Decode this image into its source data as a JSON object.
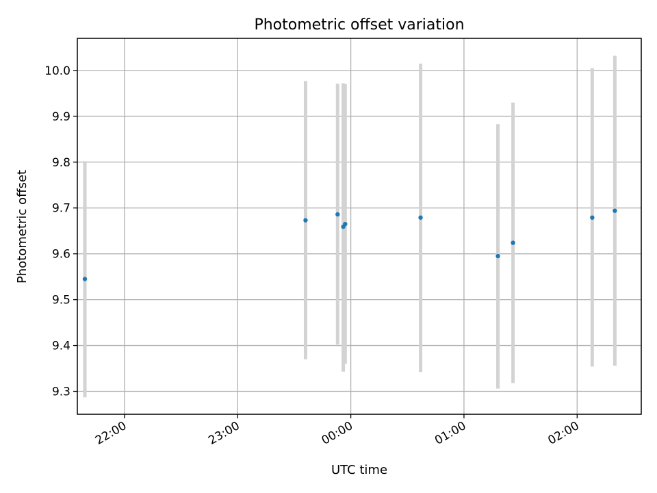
{
  "chart_data": {
    "type": "scatter",
    "title": "Photometric offset variation",
    "xlabel": "UTC time",
    "ylabel": "Photometric offset",
    "x_axis": {
      "kind": "time",
      "ticks": [
        "22:00",
        "23:00",
        "00:00",
        "01:00",
        "02:00"
      ],
      "range": [
        "21:35",
        "02:34"
      ]
    },
    "y_axis": {
      "ticks": [
        "9.3",
        "9.4",
        "9.5",
        "9.6",
        "9.7",
        "9.8",
        "9.9",
        "10.0"
      ],
      "range": [
        9.25,
        10.07
      ]
    },
    "grid": true,
    "series": [
      {
        "color": "#1f77b4",
        "error_bar_color": "#d3d3d3",
        "points": [
          {
            "t": "21:39",
            "y": 9.545,
            "ylow": 9.287,
            "yhigh": 9.802
          },
          {
            "t": "23:36",
            "y": 9.673,
            "ylow": 9.37,
            "yhigh": 9.977
          },
          {
            "t": "23:53",
            "y": 9.686,
            "ylow": 9.402,
            "yhigh": 9.971
          },
          {
            "t": "23:56",
            "y": 9.659,
            "ylow": 9.343,
            "yhigh": 9.972
          },
          {
            "t": "23:57",
            "y": 9.665,
            "ylow": 9.36,
            "yhigh": 9.97
          },
          {
            "t": "00:37",
            "y": 9.679,
            "ylow": 9.342,
            "yhigh": 10.015
          },
          {
            "t": "01:18",
            "y": 9.595,
            "ylow": 9.306,
            "yhigh": 9.883
          },
          {
            "t": "01:26",
            "y": 9.624,
            "ylow": 9.318,
            "yhigh": 9.93
          },
          {
            "t": "02:08",
            "y": 9.679,
            "ylow": 9.354,
            "yhigh": 10.005
          },
          {
            "t": "02:20",
            "y": 9.694,
            "ylow": 9.356,
            "yhigh": 10.032
          }
        ]
      }
    ]
  }
}
